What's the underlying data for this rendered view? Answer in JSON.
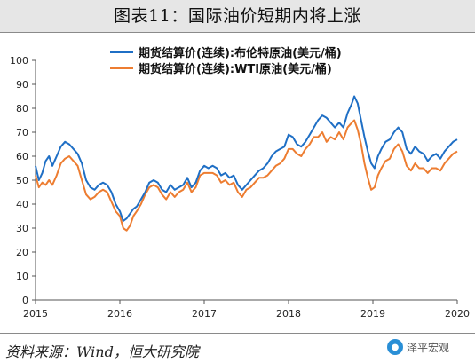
{
  "header": {
    "title": "图表11：国际油价短期内将上涨"
  },
  "footer": {
    "source": "资料来源：Wind，恒大研究院",
    "watermark": "泽平宏观"
  },
  "chart_data": {
    "type": "line",
    "ylim": [
      0,
      100
    ],
    "yticks": [
      "0",
      "10",
      "20",
      "30",
      "40",
      "50",
      "60",
      "70",
      "80",
      "90",
      "100"
    ],
    "xlim": [
      2015,
      2020
    ],
    "xticks": [
      "2015",
      "2016",
      "2017",
      "2018",
      "2019",
      "2020"
    ],
    "legend_position": "top-center",
    "grid": false,
    "series": [
      {
        "name": "期货结算价(连续):布伦特原油(美元/桶)",
        "color": "#1f6fc5",
        "x": [
          2015.0,
          2015.04,
          2015.08,
          2015.12,
          2015.16,
          2015.2,
          2015.25,
          2015.3,
          2015.35,
          2015.4,
          2015.45,
          2015.5,
          2015.55,
          2015.6,
          2015.65,
          2015.7,
          2015.75,
          2015.8,
          2015.85,
          2015.9,
          2015.95,
          2016.0,
          2016.04,
          2016.08,
          2016.12,
          2016.16,
          2016.2,
          2016.25,
          2016.3,
          2016.35,
          2016.4,
          2016.45,
          2016.5,
          2016.55,
          2016.6,
          2016.65,
          2016.7,
          2016.75,
          2016.8,
          2016.85,
          2016.9,
          2016.95,
          2017.0,
          2017.05,
          2017.1,
          2017.15,
          2017.2,
          2017.25,
          2017.3,
          2017.35,
          2017.4,
          2017.45,
          2017.5,
          2017.55,
          2017.6,
          2017.65,
          2017.7,
          2017.75,
          2017.8,
          2017.85,
          2017.9,
          2017.95,
          2018.0,
          2018.05,
          2018.1,
          2018.15,
          2018.2,
          2018.25,
          2018.3,
          2018.35,
          2018.4,
          2018.45,
          2018.5,
          2018.55,
          2018.6,
          2018.65,
          2018.7,
          2018.75,
          2018.78,
          2018.82,
          2018.86,
          2018.9,
          2018.94,
          2018.98,
          2019.02,
          2019.06,
          2019.1,
          2019.15,
          2019.2,
          2019.25,
          2019.3,
          2019.35,
          2019.4,
          2019.45,
          2019.5,
          2019.55,
          2019.6,
          2019.65,
          2019.7,
          2019.75,
          2019.8,
          2019.85,
          2019.9,
          2019.95,
          2020.0
        ],
        "y": [
          56,
          50,
          53,
          58,
          60,
          56,
          60,
          64,
          66,
          65,
          63,
          61,
          57,
          50,
          47,
          46,
          48,
          49,
          48,
          45,
          40,
          37,
          33,
          34,
          36,
          38,
          39,
          42,
          45,
          49,
          50,
          49,
          46,
          45,
          48,
          46,
          47,
          48,
          51,
          47,
          49,
          54,
          56,
          55,
          56,
          55,
          52,
          53,
          51,
          52,
          48,
          46,
          48,
          50,
          52,
          54,
          55,
          57,
          60,
          62,
          63,
          64,
          69,
          68,
          65,
          64,
          66,
          69,
          72,
          75,
          77,
          76,
          74,
          72,
          74,
          72,
          78,
          82,
          85,
          82,
          75,
          68,
          62,
          57,
          55,
          60,
          63,
          66,
          67,
          70,
          72,
          70,
          63,
          61,
          64,
          62,
          61,
          58,
          60,
          61,
          59,
          62,
          64,
          66,
          67
        ]
      },
      {
        "name": "期货结算价(连续):WTI原油(美元/桶)",
        "color": "#ed7d31",
        "x": [
          2015.0,
          2015.04,
          2015.08,
          2015.12,
          2015.16,
          2015.2,
          2015.25,
          2015.3,
          2015.35,
          2015.4,
          2015.45,
          2015.5,
          2015.55,
          2015.6,
          2015.65,
          2015.7,
          2015.75,
          2015.8,
          2015.85,
          2015.9,
          2015.95,
          2016.0,
          2016.04,
          2016.08,
          2016.12,
          2016.16,
          2016.2,
          2016.25,
          2016.3,
          2016.35,
          2016.4,
          2016.45,
          2016.5,
          2016.55,
          2016.6,
          2016.65,
          2016.7,
          2016.75,
          2016.8,
          2016.85,
          2016.9,
          2016.95,
          2017.0,
          2017.05,
          2017.1,
          2017.15,
          2017.2,
          2017.25,
          2017.3,
          2017.35,
          2017.4,
          2017.45,
          2017.5,
          2017.55,
          2017.6,
          2017.65,
          2017.7,
          2017.75,
          2017.8,
          2017.85,
          2017.9,
          2017.95,
          2018.0,
          2018.05,
          2018.1,
          2018.15,
          2018.2,
          2018.25,
          2018.3,
          2018.35,
          2018.4,
          2018.45,
          2018.5,
          2018.55,
          2018.6,
          2018.65,
          2018.7,
          2018.75,
          2018.78,
          2018.82,
          2018.86,
          2018.9,
          2018.94,
          2018.98,
          2019.02,
          2019.06,
          2019.1,
          2019.15,
          2019.2,
          2019.25,
          2019.3,
          2019.35,
          2019.4,
          2019.45,
          2019.5,
          2019.55,
          2019.6,
          2019.65,
          2019.7,
          2019.75,
          2019.8,
          2019.85,
          2019.9,
          2019.95,
          2020.0
        ],
        "y": [
          52,
          47,
          49,
          48,
          50,
          48,
          52,
          57,
          59,
          60,
          58,
          56,
          50,
          44,
          42,
          43,
          45,
          46,
          45,
          41,
          37,
          35,
          30,
          29,
          31,
          35,
          37,
          40,
          44,
          47,
          48,
          47,
          44,
          42,
          45,
          43,
          45,
          46,
          49,
          45,
          47,
          52,
          53,
          53,
          53,
          52,
          49,
          50,
          48,
          49,
          45,
          43,
          46,
          47,
          49,
          51,
          51,
          52,
          54,
          56,
          57,
          59,
          63,
          63,
          61,
          60,
          63,
          65,
          68,
          68,
          70,
          66,
          68,
          67,
          70,
          67,
          72,
          74,
          75,
          71,
          65,
          57,
          51,
          46,
          47,
          52,
          55,
          58,
          59,
          63,
          65,
          62,
          56,
          54,
          57,
          55,
          55,
          53,
          55,
          55,
          54,
          57,
          59,
          61,
          62
        ]
      }
    ]
  }
}
